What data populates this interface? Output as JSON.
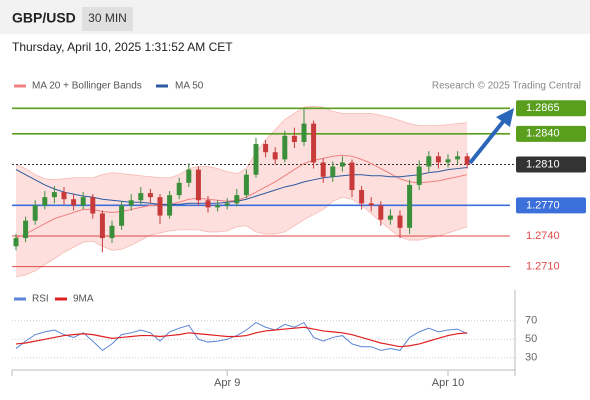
{
  "header": {
    "symbol": "GBP/USD",
    "interval": "30 MIN",
    "timestamp": "Thursday, April 10, 2025 1:31:52 AM CET"
  },
  "chart_data": [
    {
      "type": "candlestick",
      "source": "Research © 2025 Trading Central",
      "up_color": "#3a8f3a",
      "down_color": "#c83a3a",
      "ylim": [
        1.2694,
        1.2878
      ],
      "open": [
        1.273,
        1.2738,
        1.2755,
        1.277,
        1.2778,
        1.2783,
        1.2776,
        1.277,
        1.2778,
        1.2762,
        1.2738,
        1.275,
        1.277,
        1.2775,
        1.2782,
        1.2778,
        1.276,
        1.278,
        1.2792,
        1.2805,
        1.2775,
        1.2768,
        1.277,
        1.2772,
        1.278,
        1.28,
        1.283,
        1.2822,
        1.2815,
        1.2838,
        1.2832,
        1.285,
        1.2812,
        1.2798,
        1.2808,
        1.2812,
        1.2785,
        1.2772,
        1.277,
        1.2756,
        1.276,
        1.2748,
        1.279,
        1.2808,
        1.2818,
        1.2812,
        1.2815,
        1.2818
      ],
      "high": [
        1.2742,
        1.2759,
        1.2775,
        1.2784,
        1.2789,
        1.2788,
        1.2781,
        1.2783,
        1.2781,
        1.2765,
        1.2755,
        1.2774,
        1.2781,
        1.2788,
        1.2786,
        1.2781,
        1.2784,
        1.2797,
        1.2811,
        1.2808,
        1.2779,
        1.2775,
        1.2777,
        1.2786,
        1.2805,
        1.2836,
        1.2834,
        1.2827,
        1.2843,
        1.2846,
        1.2865,
        1.2853,
        1.2816,
        1.2813,
        1.2818,
        1.2815,
        1.2789,
        1.2778,
        1.2774,
        1.2766,
        1.2765,
        1.2795,
        1.2814,
        1.2823,
        1.2822,
        1.282,
        1.2823,
        1.2821
      ],
      "low": [
        1.2726,
        1.2734,
        1.2751,
        1.2766,
        1.2772,
        1.2771,
        1.2765,
        1.2766,
        1.2757,
        1.2724,
        1.2733,
        1.2746,
        1.2765,
        1.2771,
        1.2772,
        1.2752,
        1.2757,
        1.2776,
        1.2788,
        1.277,
        1.2763,
        1.2764,
        1.2766,
        1.2769,
        1.2777,
        1.2797,
        1.2817,
        1.281,
        1.2812,
        1.2826,
        1.2828,
        1.2806,
        1.2792,
        1.2793,
        1.2803,
        1.2778,
        1.2766,
        1.2764,
        1.275,
        1.2751,
        1.2738,
        1.2742,
        1.2785,
        1.2803,
        1.2806,
        1.2807,
        1.281,
        1.2806
      ],
      "close": [
        1.2738,
        1.2755,
        1.277,
        1.2778,
        1.2783,
        1.2776,
        1.277,
        1.2778,
        1.2762,
        1.2738,
        1.275,
        1.277,
        1.2775,
        1.2782,
        1.2778,
        1.276,
        1.278,
        1.2792,
        1.2805,
        1.2775,
        1.2768,
        1.277,
        1.2772,
        1.278,
        1.28,
        1.283,
        1.2822,
        1.2815,
        1.2838,
        1.2832,
        1.285,
        1.2812,
        1.2798,
        1.2808,
        1.2812,
        1.2785,
        1.2772,
        1.277,
        1.2756,
        1.276,
        1.2748,
        1.279,
        1.2808,
        1.2818,
        1.2812,
        1.2815,
        1.2818,
        1.281
      ],
      "series": [
        {
          "name": "MA 20 + Bollinger Bands",
          "color": "#f08080",
          "band_color": "#fde0de",
          "values": [
            1.2738,
            1.2742,
            1.2747,
            1.2752,
            1.2757,
            1.276,
            1.2763,
            1.2766,
            1.2766,
            1.2764,
            1.2763,
            1.2764,
            1.2766,
            1.2768,
            1.277,
            1.277,
            1.2771,
            1.2773,
            1.2776,
            1.2777,
            1.2776,
            1.2775,
            1.2774,
            1.2775,
            1.2778,
            1.2783,
            1.2788,
            1.2793,
            1.2799,
            1.2805,
            1.2811,
            1.2814,
            1.2816,
            1.2818,
            1.2819,
            1.2818,
            1.2815,
            1.2811,
            1.2806,
            1.2801,
            1.2796,
            1.2793,
            1.2792,
            1.2793,
            1.2794,
            1.2796,
            1.2798,
            1.28
          ],
          "upper": [
            1.281,
            1.2806,
            1.28,
            1.2796,
            1.2795,
            1.2796,
            1.2797,
            1.2797,
            1.2797,
            1.28,
            1.2802,
            1.2801,
            1.28,
            1.2799,
            1.2798,
            1.2797,
            1.2797,
            1.28,
            1.2806,
            1.2808,
            1.2808,
            1.2806,
            1.2803,
            1.2801,
            1.2806,
            1.2822,
            1.2834,
            1.2844,
            1.2854,
            1.286,
            1.2866,
            1.2867,
            1.2866,
            1.2862,
            1.286,
            1.286,
            1.286,
            1.286,
            1.2858,
            1.2856,
            1.2853,
            1.285,
            1.2848,
            1.2848,
            1.2848,
            1.2849,
            1.285,
            1.2851
          ],
          "lower": [
            1.27,
            1.2702,
            1.2706,
            1.2712,
            1.2718,
            1.2724,
            1.2729,
            1.2734,
            1.2735,
            1.273,
            1.2726,
            1.2727,
            1.2731,
            1.2736,
            1.2741,
            1.2743,
            1.2745,
            1.2746,
            1.2746,
            1.2746,
            1.2744,
            1.2744,
            1.2745,
            1.2749,
            1.275,
            1.2744,
            1.2742,
            1.2742,
            1.2744,
            1.275,
            1.2756,
            1.2761,
            1.2766,
            1.2774,
            1.2778,
            1.2776,
            1.277,
            1.2762,
            1.2754,
            1.2746,
            1.2739,
            1.2736,
            1.2736,
            1.2738,
            1.274,
            1.2743,
            1.2746,
            1.2749
          ]
        },
        {
          "name": "MA 50",
          "color": "#2c5aa0",
          "values": [
            1.2805,
            1.28,
            1.2795,
            1.279,
            1.2786,
            1.2783,
            1.2781,
            1.2779,
            1.2778,
            1.2776,
            1.2775,
            1.2774,
            1.2773,
            1.2773,
            1.2772,
            1.2771,
            1.2771,
            1.2771,
            1.2772,
            1.2772,
            1.2772,
            1.2772,
            1.2773,
            1.2774,
            1.2776,
            1.2779,
            1.2782,
            1.2785,
            1.2788,
            1.279,
            1.2793,
            1.2795,
            1.2797,
            1.2798,
            1.2799,
            1.28,
            1.28,
            1.2799,
            1.2799,
            1.2798,
            1.2798,
            1.2799,
            1.28,
            1.2802,
            1.2803,
            1.2805,
            1.2806,
            1.2807
          ]
        }
      ],
      "levels": [
        {
          "value": 1.2865,
          "label": "1.2865",
          "color": "#5a9e1e",
          "boxed": true,
          "dashed": false
        },
        {
          "value": 1.284,
          "label": "1.2840",
          "color": "#5a9e1e",
          "boxed": true,
          "dashed": false
        },
        {
          "value": 1.281,
          "label": "1.2810",
          "color": "#333333",
          "boxed": true,
          "dashed": true
        },
        {
          "value": 1.277,
          "label": "1.2770",
          "color": "#3b6fd9",
          "boxed": true,
          "dashed": false
        },
        {
          "value": 1.274,
          "label": "1.2740",
          "color": "#e04848",
          "boxed": false,
          "dashed": false
        },
        {
          "value": 1.271,
          "label": "1.2710",
          "color": "#e04848",
          "boxed": false,
          "dashed": false
        }
      ]
    },
    {
      "type": "line",
      "categories": [
        null,
        null,
        null,
        null,
        null,
        null,
        null,
        null,
        null,
        null,
        null,
        null,
        null,
        null,
        null,
        null,
        null,
        null,
        null,
        null,
        null,
        null,
        "Apr 9",
        null,
        null,
        null,
        null,
        null,
        null,
        null,
        null,
        null,
        null,
        null,
        null,
        null,
        null,
        null,
        null,
        null,
        null,
        null,
        null,
        null,
        null,
        "Apr 10",
        null,
        null
      ],
      "ylim": [
        19,
        87
      ],
      "yticks": [
        30,
        50,
        70
      ],
      "grid": true,
      "series": [
        {
          "name": "RSI",
          "color": "#5b86d6",
          "values": [
            40,
            48,
            55,
            58,
            60,
            55,
            52,
            57,
            48,
            38,
            45,
            55,
            57,
            60,
            57,
            48,
            58,
            62,
            65,
            50,
            47,
            48,
            50,
            54,
            60,
            68,
            63,
            60,
            66,
            63,
            68,
            52,
            48,
            52,
            54,
            45,
            42,
            42,
            38,
            40,
            38,
            52,
            58,
            62,
            58,
            60,
            61,
            56
          ]
        },
        {
          "name": "9MA",
          "color": "#e02020",
          "values": [
            45,
            46,
            48,
            50,
            52,
            54,
            55,
            56,
            55,
            53,
            51,
            52,
            53,
            54,
            54,
            53,
            54,
            55,
            57,
            56,
            55,
            54,
            53,
            53,
            54,
            57,
            59,
            60,
            61,
            62,
            63,
            61,
            59,
            58,
            57,
            55,
            52,
            49,
            46,
            44,
            42,
            43,
            45,
            48,
            51,
            54,
            56,
            57
          ]
        }
      ]
    }
  ]
}
